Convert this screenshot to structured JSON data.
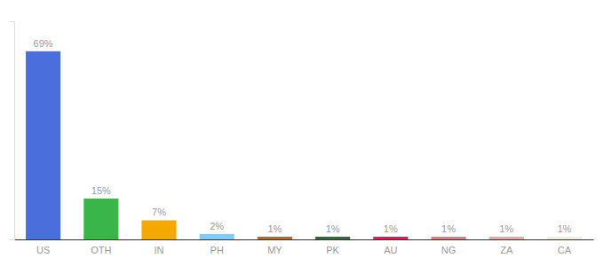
{
  "chart_data": {
    "type": "bar",
    "categories": [
      "US",
      "OTH",
      "IN",
      "PH",
      "MY",
      "PK",
      "AU",
      "NG",
      "ZA",
      "CA"
    ],
    "values": [
      69,
      15,
      7,
      2,
      1,
      1,
      1,
      1,
      1,
      1
    ],
    "value_labels": [
      "69%",
      "15%",
      "7%",
      "2%",
      "1%",
      "1%",
      "1%",
      "1%",
      "1%",
      "1%"
    ],
    "colors": [
      "#4a6fdc",
      "#3ab54a",
      "#f5a800",
      "#7ecef4",
      "#c0652a",
      "#2d6e2d",
      "#e8185a",
      "#e87878",
      "#e8a898",
      "#f0f0d8"
    ],
    "ylim": [
      0,
      80
    ],
    "data_labels": true,
    "tick_labels": "x"
  }
}
